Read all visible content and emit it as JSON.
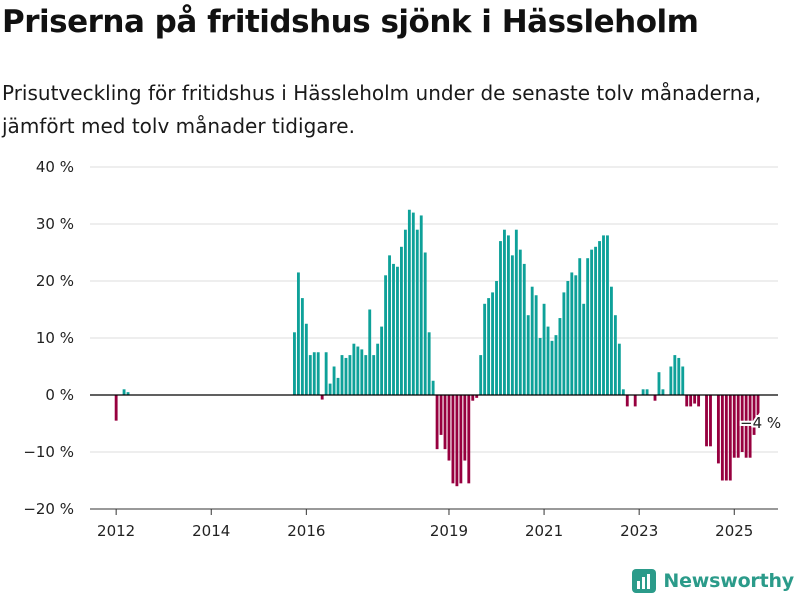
{
  "header": {
    "title": "Priserna på fritidshus sjönk i Hässleholm",
    "subtitle": "Prisutveckling för fritidshus i Hässleholm under de senaste tolv månaderna, jämfört med tolv månader tidigare."
  },
  "brand": {
    "name": "Newsworthy",
    "color": "#2b9b8a"
  },
  "colors": {
    "positive": "#0ea199",
    "negative": "#97003f",
    "grid": "#dddddd",
    "baseline": "#000000"
  },
  "chart_data": {
    "type": "bar",
    "ylim": [
      -20,
      40
    ],
    "yticks": [
      -20,
      -10,
      0,
      10,
      20,
      30,
      40
    ],
    "ytick_labels": [
      "−20 %",
      "−10 %",
      "0 %",
      "10 %",
      "20 %",
      "30 %",
      "40 %"
    ],
    "x_tick_labels": [
      "2012",
      "2014",
      "2016",
      "2019",
      "2021",
      "2023",
      "2025"
    ],
    "x_tick_dates": [
      2012.0,
      2014.0,
      2016.0,
      2019.0,
      2021.0,
      2023.0,
      2025.0
    ],
    "end_label": "−4 %",
    "series": [
      {
        "segments": [
          {
            "start": "2012-01",
            "values": [
              -4.5,
              null,
              1,
              0.5
            ]
          },
          {
            "start": "2015-10",
            "values": [
              11,
              21.5,
              17,
              12.5,
              7,
              7.5,
              7.5,
              -0.8,
              7.5,
              2,
              5,
              3,
              7,
              6.5,
              7,
              9,
              8.5,
              8,
              7,
              15,
              7,
              9,
              12,
              21,
              24.5,
              23,
              22.5,
              26,
              29,
              32.5,
              32,
              29,
              31.5,
              25,
              11,
              2.5,
              -9.5,
              -7,
              -9.5,
              -11.5,
              -15.5,
              -16,
              -15.5,
              -11.5,
              -15.5,
              -1,
              -0.5,
              7,
              16,
              17,
              18,
              20,
              27,
              29,
              28,
              24.5,
              29,
              25.5,
              23,
              14,
              19,
              17.5,
              10,
              16,
              12,
              9.5,
              10.5,
              13.5,
              18,
              20,
              21.5,
              21,
              24,
              16,
              24,
              25.5,
              26,
              27,
              28,
              28,
              19,
              14,
              9,
              1,
              -2,
              null,
              -2,
              null,
              1,
              1,
              null,
              -1,
              4,
              1,
              null,
              5,
              7,
              6.5,
              5,
              -2,
              -2,
              -1.5,
              -2,
              null,
              -9,
              -9,
              null,
              -12,
              -15,
              -15,
              -15,
              -11,
              -11,
              -10,
              -11,
              -11,
              -7,
              -4
            ]
          }
        ]
      }
    ]
  }
}
